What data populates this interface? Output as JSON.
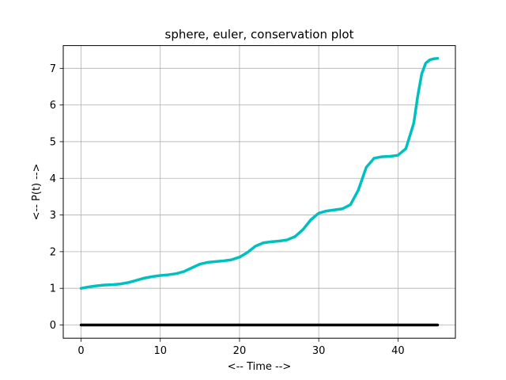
{
  "chart_data": {
    "type": "line",
    "title": "sphere, euler, conservation plot",
    "xlabel": "<-- Time -->",
    "ylabel": "<-- P(t) -->",
    "xlim": [
      -2.25,
      47.25
    ],
    "ylim": [
      -0.36,
      7.62
    ],
    "xticks": [
      0,
      10,
      20,
      30,
      40
    ],
    "yticks": [
      0,
      1,
      2,
      3,
      4,
      5,
      6,
      7
    ],
    "grid": true,
    "series": [
      {
        "color": "#00bfbf",
        "x": [
          0,
          1,
          2,
          3,
          4,
          5,
          6,
          7,
          8,
          9,
          10,
          11,
          12,
          13,
          14,
          15,
          16,
          17,
          18,
          19,
          20,
          21,
          22,
          23,
          24,
          25,
          26,
          27,
          28,
          29,
          30,
          31,
          32,
          33,
          34,
          35,
          36,
          37,
          38,
          39,
          40,
          41,
          42,
          42.5,
          43,
          43.5,
          44,
          44.5,
          45
        ],
        "y": [
          1.0,
          1.04,
          1.07,
          1.09,
          1.1,
          1.12,
          1.16,
          1.22,
          1.28,
          1.32,
          1.35,
          1.37,
          1.4,
          1.46,
          1.56,
          1.66,
          1.71,
          1.73,
          1.75,
          1.78,
          1.85,
          1.98,
          2.15,
          2.24,
          2.27,
          2.29,
          2.32,
          2.41,
          2.6,
          2.87,
          3.05,
          3.11,
          3.14,
          3.17,
          3.28,
          3.68,
          4.3,
          4.55,
          4.59,
          4.6,
          4.63,
          4.81,
          5.51,
          6.25,
          6.85,
          7.14,
          7.23,
          7.26,
          7.27
        ]
      },
      {
        "color": "#000000",
        "x": [
          0,
          45
        ],
        "y": [
          0,
          0
        ]
      }
    ]
  }
}
